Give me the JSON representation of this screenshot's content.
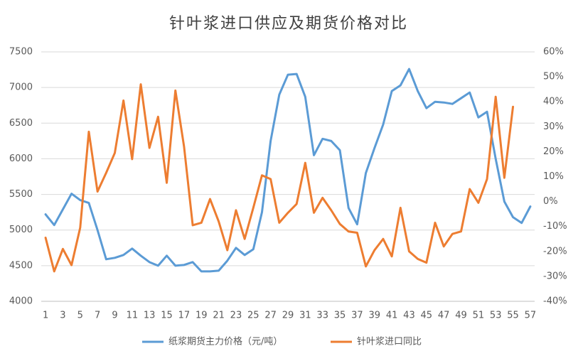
{
  "chart_data": {
    "type": "line",
    "title": "针叶浆进口供应及期货价格对比",
    "categories": [
      "1",
      null,
      "3",
      null,
      "5",
      null,
      "7",
      null,
      "9",
      null,
      "11",
      null,
      "13",
      null,
      "15",
      null,
      "17",
      null,
      "19",
      null,
      "21",
      null,
      "23",
      null,
      "25",
      null,
      "27",
      null,
      "29",
      null,
      "31",
      null,
      "33",
      null,
      "35",
      null,
      "37",
      null,
      "39",
      null,
      "41",
      null,
      "43",
      null,
      "45",
      null,
      "47",
      null,
      "49",
      null,
      "51",
      null,
      "53",
      null,
      "55",
      null,
      "57"
    ],
    "series": [
      {
        "name": "纸浆期货主力价格（元/吨）",
        "color": "#5b9bd5",
        "values": [
          5220,
          5070,
          5290,
          5510,
          5420,
          5380,
          5000,
          4590,
          4610,
          4650,
          4740,
          4640,
          4550,
          4500,
          4640,
          4500,
          4510,
          4550,
          4420,
          4420,
          4430,
          4570,
          4750,
          4650,
          4730,
          5250,
          6250,
          6900,
          7180,
          7190,
          6870,
          6050,
          6280,
          6250,
          6120,
          5310,
          5080,
          5800,
          6150,
          6480,
          6950,
          7030,
          7260,
          6950,
          6710,
          6800,
          6790,
          6770,
          6850,
          6930,
          6580,
          6660,
          6000,
          5400,
          5180,
          5100,
          5330
        ]
      },
      {
        "name": "针叶浆进口同比",
        "color": "#ed7d31",
        "axis": "y2",
        "values": [
          -14.5,
          -28,
          -19,
          -25.5,
          -10.5,
          28,
          4,
          11.5,
          19.5,
          40.5,
          17,
          47,
          21.5,
          34,
          7.5,
          44.5,
          22,
          -9.5,
          -8.5,
          1,
          -8,
          -19.5,
          -3.5,
          -15,
          -2.5,
          10.5,
          9,
          -8.5,
          -4.5,
          -1,
          15.5,
          -4.5,
          1.5,
          -3.5,
          -9,
          -12,
          -12.5,
          -26,
          -19.5,
          -15,
          -22,
          -2.5,
          -20,
          -23,
          -24.5,
          -8.5,
          -18,
          -13,
          -12,
          5,
          -0.5,
          9,
          42,
          9.5,
          38,
          null,
          null
        ]
      }
    ],
    "ylim": [
      4000,
      7500
    ],
    "yticks": [
      4000,
      4500,
      5000,
      5500,
      6000,
      6500,
      7000,
      7500
    ],
    "y2lim": [
      -40,
      60
    ],
    "y2ticks": [
      {
        "value": -40,
        "label": "-40%"
      },
      {
        "value": -30,
        "label": "-30%"
      },
      {
        "value": -20,
        "label": "-20%"
      },
      {
        "value": -10,
        "label": "-10%"
      },
      {
        "value": 0,
        "label": "0%"
      },
      {
        "value": 10,
        "label": "10%"
      },
      {
        "value": 20,
        "label": "20%"
      },
      {
        "value": 30,
        "label": "30%"
      },
      {
        "value": 40,
        "label": "40%"
      },
      {
        "value": 50,
        "label": "50%"
      },
      {
        "value": 60,
        "label": "60%"
      }
    ],
    "grid": true,
    "legend": "bottom"
  }
}
